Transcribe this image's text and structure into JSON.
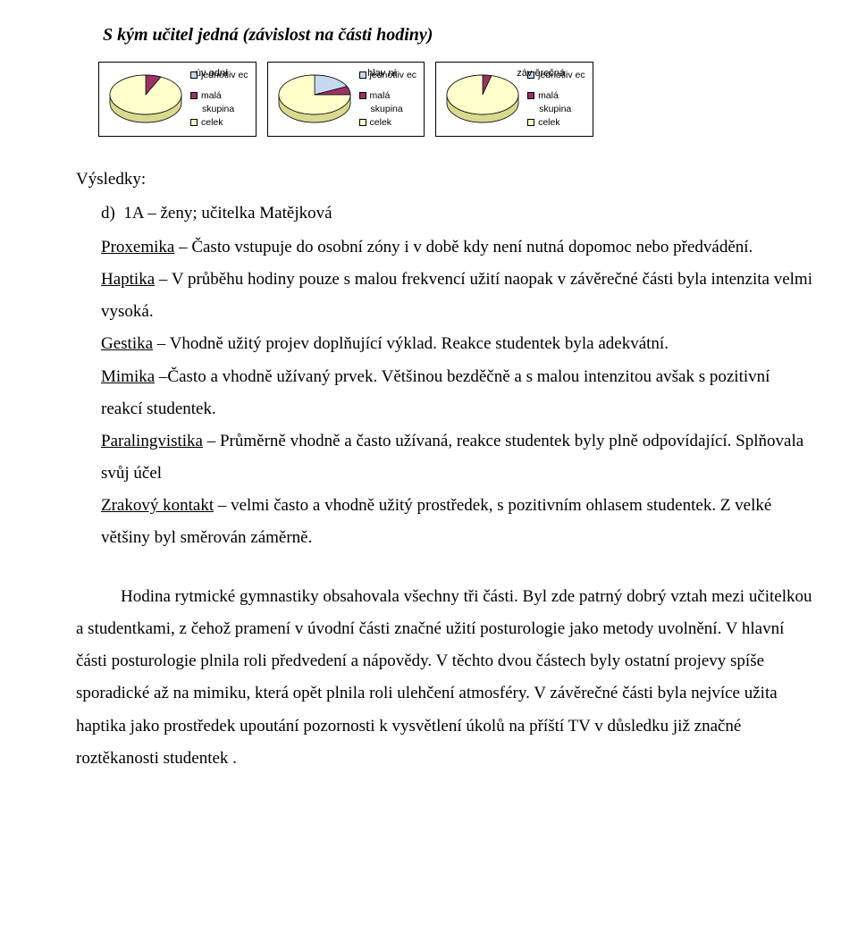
{
  "title": "S kým učitel jedná (závislost na části hodiny)",
  "colors": {
    "jednotlivec": "#c6d9f1",
    "mala_skupina": "#993366",
    "celek": "#ffffcc",
    "pie_stroke": "#000000",
    "shadow": "#b0b0b0"
  },
  "legend": {
    "jednotlivec": "jednotliv ec",
    "mala": "malá",
    "skupina": "skupina",
    "celek": "celek"
  },
  "charts": [
    {
      "label": "úv odní",
      "slices": [
        {
          "key": "jednotlivec",
          "fraction": 0.0
        },
        {
          "key": "mala_skupina",
          "fraction": 0.07
        },
        {
          "key": "celek",
          "fraction": 0.93
        }
      ]
    },
    {
      "label": "hlav ní",
      "slices": [
        {
          "key": "jednotlivec",
          "fraction": 0.18
        },
        {
          "key": "mala_skupina",
          "fraction": 0.07
        },
        {
          "key": "celek",
          "fraction": 0.75
        }
      ]
    },
    {
      "label": "záv ěrečná",
      "slices": [
        {
          "key": "jednotlivec",
          "fraction": 0.0
        },
        {
          "key": "mala_skupina",
          "fraction": 0.04
        },
        {
          "key": "celek",
          "fraction": 0.96
        }
      ]
    }
  ],
  "results_heading": "Výsledky:",
  "list_marker": "d)  1A – ženy; učitelka Matějková",
  "paragraph1_html": "<span class='u'>Proxemika</span> – Často vstupuje do osobní zóny i v době kdy není nutná dopomoc nebo předvádění.<br><span class='u'>Haptika</span> – V průběhu hodiny pouze s malou frekvencí užití naopak v závěrečné části byla intenzita velmi vysoká.<br><span class='u'>Gestika</span> – Vhodně užitý projev doplňující výklad. Reakce studentek byla adekvátní.<br><span class='u'>Mimika</span> –Často a vhodně užívaný prvek. Většinou bezděčně a s malou intenzitou avšak s pozitivní reakcí studentek.<br><span class='u'>Paralingvistika</span> – Průměrně vhodně a často užívaná, reakce studentek byly plně odpovídající. Splňovala svůj účel<br><span class='u'>Zrakový kontakt</span> – velmi často a vhodně užitý prostředek, s pozitivním ohlasem studentek. Z velké většiny byl směrován záměrně.",
  "paragraph2": "Hodina rytmické gymnastiky obsahovala všechny tři části. Byl zde patrný dobrý vztah mezi učitelkou a studentkami, z čehož pramení v úvodní části značné užití posturologie jako metody uvolnění. V hlavní části posturologie plnila roli předvedení a nápovědy. V těchto dvou částech byly ostatní projevy spíše sporadické až na mimiku, která opět plnila roli ulehčení atmosféry. V závěrečné  části byla nejvíce užita haptika jako prostředek upoutání pozornosti k vysvětlení úkolů na příští TV v důsledku již značné roztěkanosti studentek ."
}
